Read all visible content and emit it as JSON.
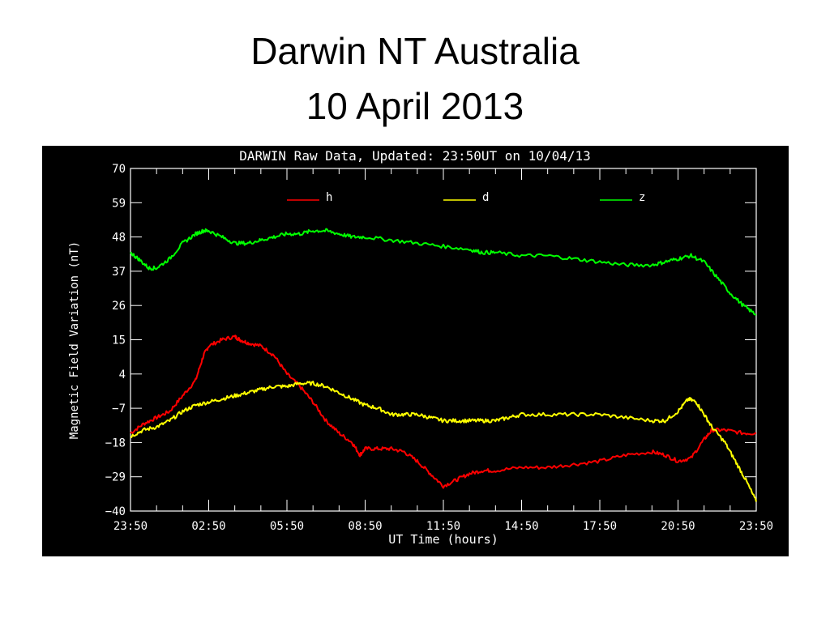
{
  "slide": {
    "title_line_1": "Darwin NT Australia",
    "title_line_2": "10 April 2013"
  },
  "chart_data": {
    "type": "line",
    "title": "DARWIN Raw Data, Updated: 23:50UT on 10/04/13",
    "xlabel": "UT Time (hours)",
    "ylabel": "Magnetic Field Variation (nT)",
    "x_ticks": [
      "23:50",
      "02:50",
      "05:50",
      "08:50",
      "11:50",
      "14:50",
      "17:50",
      "20:50",
      "23:50"
    ],
    "y_ticks": [
      "70",
      "59",
      "48",
      "37",
      "26",
      "15",
      "4",
      "−7",
      "−18",
      "−29",
      "−40"
    ],
    "xlim": [
      0,
      24
    ],
    "ylim": [
      -40,
      70
    ],
    "background": "#000000",
    "foreground": "#ffffff",
    "legend_position": "top",
    "series": [
      {
        "name": "h",
        "color": "#ff0000",
        "points": [
          [
            0,
            -15
          ],
          [
            0.5,
            -12
          ],
          [
            1,
            -10
          ],
          [
            1.5,
            -8
          ],
          [
            2,
            -3
          ],
          [
            2.5,
            2
          ],
          [
            2.8,
            10
          ],
          [
            3,
            13
          ],
          [
            3.5,
            15
          ],
          [
            4,
            16
          ],
          [
            4.2,
            15
          ],
          [
            4.5,
            14
          ],
          [
            5,
            13
          ],
          [
            5.5,
            10
          ],
          [
            6,
            4
          ],
          [
            6.5,
            0
          ],
          [
            7,
            -5
          ],
          [
            7.5,
            -11
          ],
          [
            8,
            -15
          ],
          [
            8.5,
            -18
          ],
          [
            8.8,
            -22
          ],
          [
            9,
            -20
          ],
          [
            9.5,
            -20
          ],
          [
            10,
            -20
          ],
          [
            10.5,
            -21
          ],
          [
            11,
            -24
          ],
          [
            11.5,
            -28
          ],
          [
            12,
            -32
          ],
          [
            12.5,
            -30
          ],
          [
            13,
            -28
          ],
          [
            13.5,
            -27
          ],
          [
            14,
            -27
          ],
          [
            15,
            -26
          ],
          [
            16,
            -26
          ],
          [
            17,
            -25
          ],
          [
            18,
            -24
          ],
          [
            19,
            -22
          ],
          [
            20,
            -21
          ],
          [
            20.5,
            -22
          ],
          [
            21,
            -24
          ],
          [
            21.5,
            -23
          ],
          [
            22,
            -17
          ],
          [
            22.3,
            -14
          ],
          [
            22.8,
            -14
          ],
          [
            23.5,
            -15
          ],
          [
            24,
            -15
          ]
        ]
      },
      {
        "name": "d",
        "color": "#ffff00",
        "points": [
          [
            0,
            -16
          ],
          [
            0.5,
            -14
          ],
          [
            1,
            -13
          ],
          [
            1.5,
            -11
          ],
          [
            2,
            -8
          ],
          [
            2.5,
            -6
          ],
          [
            3,
            -5
          ],
          [
            3.5,
            -4
          ],
          [
            4,
            -3
          ],
          [
            4.5,
            -2
          ],
          [
            5,
            -1
          ],
          [
            5.5,
            0
          ],
          [
            6,
            0
          ],
          [
            6.5,
            1
          ],
          [
            7,
            1
          ],
          [
            7.5,
            0
          ],
          [
            8,
            -2
          ],
          [
            8.5,
            -4
          ],
          [
            9,
            -6
          ],
          [
            9.5,
            -7
          ],
          [
            10,
            -9
          ],
          [
            10.5,
            -9
          ],
          [
            11,
            -9
          ],
          [
            11.5,
            -10
          ],
          [
            12,
            -11
          ],
          [
            12.5,
            -11
          ],
          [
            13,
            -11
          ],
          [
            13.5,
            -11
          ],
          [
            14,
            -11
          ],
          [
            14.5,
            -10
          ],
          [
            15,
            -9
          ],
          [
            16,
            -9
          ],
          [
            17,
            -9
          ],
          [
            18,
            -9
          ],
          [
            19,
            -10
          ],
          [
            20,
            -11
          ],
          [
            20.5,
            -11
          ],
          [
            21,
            -8
          ],
          [
            21.4,
            -4
          ],
          [
            21.7,
            -5
          ],
          [
            22,
            -9
          ],
          [
            22.3,
            -13
          ],
          [
            22.8,
            -18
          ],
          [
            23.2,
            -24
          ],
          [
            23.6,
            -30
          ],
          [
            24,
            -37
          ]
        ]
      },
      {
        "name": "z",
        "color": "#00ff00",
        "points": [
          [
            0,
            43
          ],
          [
            0.3,
            41
          ],
          [
            0.7,
            38
          ],
          [
            1,
            38
          ],
          [
            1.5,
            41
          ],
          [
            2,
            46
          ],
          [
            2.5,
            49
          ],
          [
            2.8,
            50
          ],
          [
            3,
            50
          ],
          [
            3.5,
            48
          ],
          [
            4,
            46
          ],
          [
            4.5,
            46
          ],
          [
            5,
            47
          ],
          [
            5.5,
            48
          ],
          [
            6,
            49
          ],
          [
            6.5,
            49
          ],
          [
            7,
            50
          ],
          [
            7.5,
            50
          ],
          [
            8,
            49
          ],
          [
            8.5,
            48
          ],
          [
            9,
            48
          ],
          [
            10,
            47
          ],
          [
            11,
            46
          ],
          [
            12,
            45
          ],
          [
            13,
            44
          ],
          [
            13.5,
            43
          ],
          [
            14,
            43
          ],
          [
            15,
            42
          ],
          [
            16,
            42
          ],
          [
            17,
            41
          ],
          [
            18,
            40
          ],
          [
            19,
            39
          ],
          [
            20,
            39
          ],
          [
            20.5,
            40
          ],
          [
            21,
            41
          ],
          [
            21.5,
            42
          ],
          [
            22,
            40
          ],
          [
            22.5,
            35
          ],
          [
            23,
            30
          ],
          [
            23.5,
            26
          ],
          [
            24,
            23
          ]
        ]
      }
    ]
  }
}
